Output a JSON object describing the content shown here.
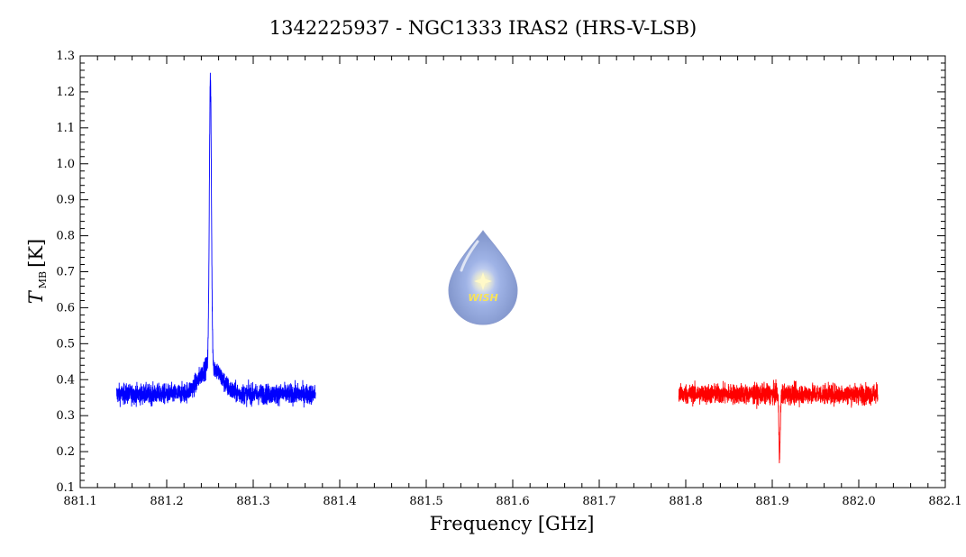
{
  "chart_data": {
    "type": "line",
    "title": "1342225937 - NGC1333 IRAS2 (HRS-V-LSB)",
    "xlabel": "Frequency [GHz]",
    "ylabel_main": "T",
    "ylabel_sub": "MB",
    "ylabel_unit": "[K]",
    "xlim": [
      881.1,
      882.1
    ],
    "ylim": [
      0.1,
      1.3
    ],
    "x_ticks": [
      "881.1",
      "881.2",
      "881.3",
      "881.4",
      "881.5",
      "881.6",
      "881.7",
      "881.8",
      "881.9",
      "882.0",
      "882.1"
    ],
    "y_ticks": [
      "0.1",
      "0.2",
      "0.3",
      "0.4",
      "0.5",
      "0.6",
      "0.7",
      "0.8",
      "0.9",
      "1.0",
      "1.1",
      "1.2",
      "1.3"
    ],
    "grid": false,
    "series": [
      {
        "color": "#0000ff",
        "x_range": [
          881.142,
          881.372
        ],
        "baseline": 0.36,
        "noise": 0.025,
        "peaks": [
          {
            "center": 881.2505,
            "amplitude": 0.8,
            "width": 0.0012
          },
          {
            "center": 881.2505,
            "amplitude": 0.08,
            "width": 0.012
          }
        ]
      },
      {
        "color": "#ff0000",
        "x_range": [
          881.792,
          882.022
        ],
        "baseline": 0.36,
        "noise": 0.025,
        "peaks": [
          {
            "center": 881.9085,
            "amplitude": -0.17,
            "width": 0.0008
          }
        ]
      }
    ],
    "logo": {
      "text": "WISH",
      "icon": "water-drop-star-icon"
    }
  }
}
